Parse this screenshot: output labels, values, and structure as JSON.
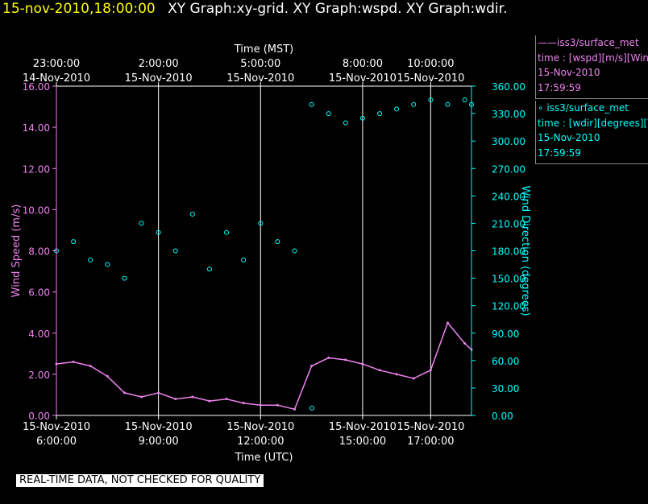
{
  "header": {
    "datetime": "15-nov-2010,18:00:00",
    "titles": "XY Graph:xy-grid.  XY Graph:wspd.  XY Graph:wdir."
  },
  "legend": [
    {
      "line1": "——iss3/surface_met",
      "line2": "time : [wspd][m/s][Wind",
      "line3": "15-Nov-2010",
      "line4": "17:59:59",
      "color": "#ee82ee"
    },
    {
      "line1": "∘  iss3/surface_met",
      "line2": "time : [wdir][degrees][V",
      "line3": "15-Nov-2010",
      "line4": "17:59:59",
      "color": "#00ffff"
    }
  ],
  "notice": "REAL-TIME DATA, NOT CHECKED FOR QUALITY",
  "chart_data": {
    "type": "line",
    "title": "",
    "top_axis": {
      "label": "Time (MST)",
      "ticks": [
        {
          "hours": 0,
          "time": "23:00:00",
          "date": "14-Nov-2010"
        },
        {
          "hours": 3,
          "time": "2:00:00",
          "date": "15-Nov-2010"
        },
        {
          "hours": 6,
          "time": "5:00:00",
          "date": "15-Nov-2010"
        },
        {
          "hours": 9,
          "time": "8:00:00",
          "date": "15-Nov-2010"
        },
        {
          "hours": 11,
          "time": "10:00:00",
          "date": "15-Nov-2010"
        }
      ]
    },
    "bottom_axis": {
      "label": "Time (UTC)",
      "ticks": [
        {
          "hours": 0,
          "date": "15-Nov-2010",
          "time": "6:00:00"
        },
        {
          "hours": 3,
          "date": "15-Nov-2010",
          "time": "9:00:00"
        },
        {
          "hours": 6,
          "date": "15-Nov-2010",
          "time": "12:00:00"
        },
        {
          "hours": 9,
          "date": "15-Nov-2010",
          "time": "15:00:00"
        },
        {
          "hours": 11,
          "date": "15-Nov-2010",
          "time": "17:00:00"
        }
      ],
      "range_hours": [
        0,
        12.2
      ]
    },
    "y_left": {
      "label": "Wind Speed (m/s)",
      "ylim": [
        0,
        16
      ],
      "ticks": [
        "0.00",
        "2.00",
        "4.00",
        "6.00",
        "8.00",
        "10.00",
        "12.00",
        "14.00",
        "16.00"
      ],
      "color": "#ee82ee"
    },
    "y_right": {
      "label": "Wind Direction (degrees)",
      "ylim": [
        0,
        360
      ],
      "ticks": [
        "0.00",
        "30.00",
        "60.00",
        "90.00",
        "120.00",
        "150.00",
        "180.00",
        "210.00",
        "240.00",
        "270.00",
        "300.00",
        "330.00",
        "360.00"
      ],
      "color": "#00ffff"
    },
    "grid": "vertical lines at bottom-axis ticks",
    "series": [
      {
        "name": "iss3/surface_met time : [wspd][m/s]",
        "style": "line",
        "color": "#ee82ee",
        "hours": [
          0.0,
          0.5,
          1.0,
          1.5,
          2.0,
          2.5,
          3.0,
          3.5,
          4.0,
          4.5,
          5.0,
          5.5,
          6.0,
          6.5,
          7.0,
          7.5,
          8.0,
          8.5,
          9.0,
          9.5,
          10.0,
          10.5,
          11.0,
          11.5,
          12.0,
          12.2
        ],
        "values": [
          2.5,
          2.6,
          2.4,
          1.9,
          1.1,
          0.9,
          1.1,
          0.8,
          0.9,
          0.7,
          0.8,
          0.6,
          0.5,
          0.5,
          0.3,
          2.4,
          2.8,
          2.7,
          2.5,
          2.2,
          2.0,
          1.8,
          2.2,
          4.5,
          3.5,
          3.2
        ]
      },
      {
        "name": "iss3/surface_met time : [wdir][degrees]",
        "style": "scatter",
        "color": "#00ffff",
        "hours": [
          0.0,
          0.5,
          1.0,
          1.5,
          2.0,
          2.5,
          3.0,
          3.5,
          4.0,
          4.5,
          5.0,
          5.5,
          6.0,
          6.5,
          7.0,
          7.5,
          7.51,
          8.0,
          8.5,
          9.0,
          9.5,
          10.0,
          10.5,
          11.0,
          11.5,
          12.0,
          12.2
        ],
        "values": [
          180,
          190,
          170,
          165,
          150,
          210,
          200,
          180,
          220,
          160,
          200,
          170,
          210,
          190,
          180,
          340,
          8,
          330,
          320,
          325,
          330,
          335,
          340,
          345,
          340,
          345,
          340
        ]
      }
    ]
  }
}
